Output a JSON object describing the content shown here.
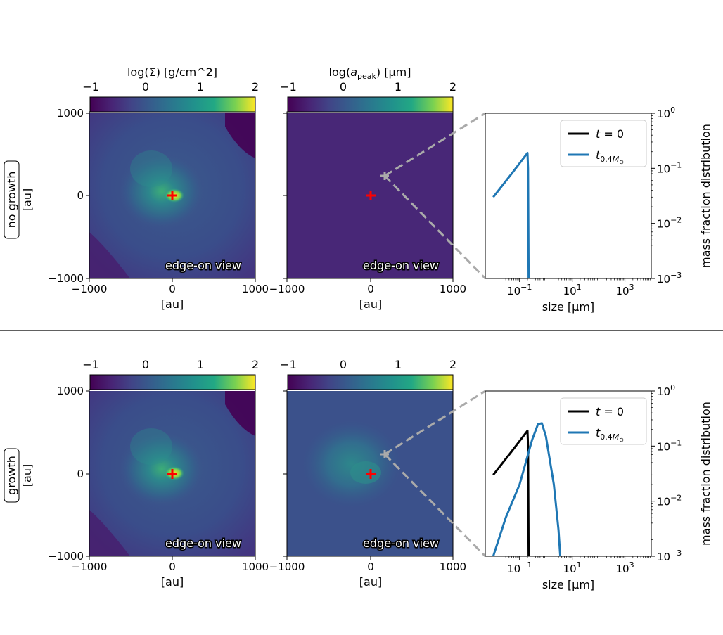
{
  "figure": {
    "rows": [
      {
        "label": "no growth",
        "axis_unit": "[au]",
        "map_panels": [
          {
            "colorbar_title": "log(Σ) [g/cm^2]",
            "colorbar_ticks": [
              "−1",
              "0",
              "1",
              "2"
            ],
            "field": "surface density"
          },
          {
            "colorbar_title": "log(a_peak)  [μm]",
            "colorbar_ticks": [
              "−1",
              "0",
              "1",
              "2"
            ],
            "field": "peak grain size"
          }
        ],
        "annotation": "edge-on view"
      },
      {
        "label": "growth",
        "axis_unit": "[au]",
        "map_panels": [
          {
            "colorbar_title": "",
            "colorbar_ticks": [
              "−1",
              "0",
              "1",
              "2"
            ],
            "field": "surface density"
          },
          {
            "colorbar_title": "",
            "colorbar_ticks": [
              "−1",
              "0",
              "1",
              "2"
            ],
            "field": "peak grain size"
          }
        ],
        "annotation": "edge-on view"
      }
    ],
    "map_axes": {
      "x_ticks": [
        "−1000",
        "0",
        "1000"
      ],
      "y_ticks": [
        "1000",
        "0",
        "−1000"
      ],
      "xlabel": "[au]"
    },
    "annotation_text": "edge-on view",
    "colors": {
      "accent": "#1f77b4",
      "marker": "#ff0000",
      "zoom_line": "#aaaaaa"
    }
  },
  "chart_data": [
    {
      "type": "line",
      "row": "no growth",
      "xlabel": "size [μm]",
      "ylabel": "mass fraction distribution",
      "xscale": "log",
      "yscale": "log",
      "xlim": [
        0.005,
        10000
      ],
      "ylim": [
        0.001,
        1
      ],
      "x_ticks": [
        "10^-1",
        "10^1",
        "10^3"
      ],
      "y_ticks": [
        "10^0",
        "10^-1",
        "10^-2",
        "10^-3"
      ],
      "legend_loc": "upper right",
      "series": [
        {
          "name": "t = 0",
          "color": "#000000",
          "points": []
        },
        {
          "name": "t_0.4M⊙",
          "color": "#1f77b4",
          "points": [
            [
              0.01,
              0.03
            ],
            [
              0.05,
              0.08
            ],
            [
              0.2,
              0.19
            ],
            [
              0.21,
              0.1
            ],
            [
              0.22,
              0.001
            ]
          ]
        }
      ]
    },
    {
      "type": "line",
      "row": "growth",
      "xlabel": "size [μm]",
      "ylabel": "mass fraction distribution",
      "xscale": "log",
      "yscale": "log",
      "xlim": [
        0.005,
        10000
      ],
      "ylim": [
        0.001,
        1
      ],
      "x_ticks": [
        "10^-1",
        "10^1",
        "10^3"
      ],
      "y_ticks": [
        "10^0",
        "10^-1",
        "10^-2",
        "10^-3"
      ],
      "legend_loc": "upper right",
      "series": [
        {
          "name": "t = 0",
          "color": "#000000",
          "points": [
            [
              0.01,
              0.03
            ],
            [
              0.05,
              0.08
            ],
            [
              0.2,
              0.19
            ],
            [
              0.21,
              0.1
            ],
            [
              0.22,
              0.001
            ]
          ]
        },
        {
          "name": "t_0.4M⊙",
          "color": "#1f77b4",
          "points": [
            [
              0.01,
              0.001
            ],
            [
              0.03,
              0.005
            ],
            [
              0.1,
              0.02
            ],
            [
              0.3,
              0.13
            ],
            [
              0.5,
              0.25
            ],
            [
              0.7,
              0.26
            ],
            [
              1.0,
              0.15
            ],
            [
              2.0,
              0.02
            ],
            [
              3.0,
              0.003
            ],
            [
              3.5,
              0.001
            ]
          ]
        }
      ]
    }
  ]
}
